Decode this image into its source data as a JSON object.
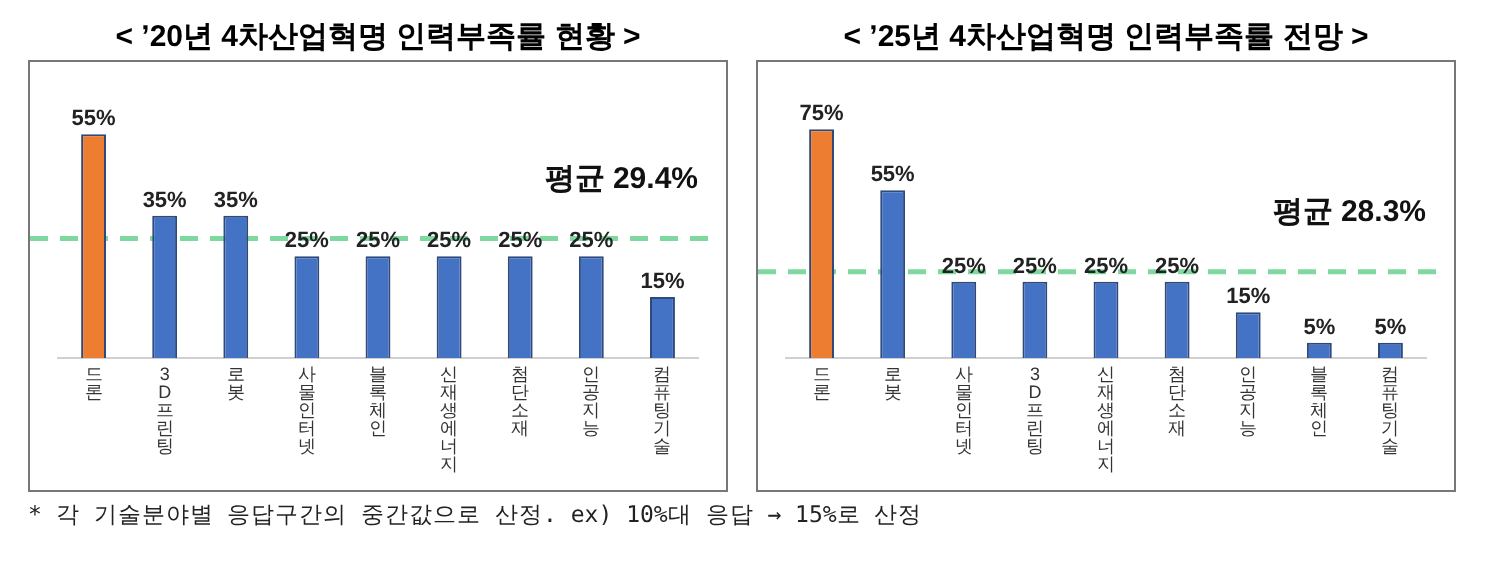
{
  "chart_data": [
    {
      "type": "bar",
      "title": "< ’20년 4차산업혁명 인력부족률 현황 >",
      "categories": [
        "드론",
        "3D프린팅",
        "로봇",
        "사물인터넷",
        "블록체인",
        "신재생에너지",
        "첨단소재",
        "인공지능",
        "컴퓨팅기술"
      ],
      "values": [
        55,
        35,
        35,
        25,
        25,
        25,
        25,
        25,
        15
      ],
      "value_labels": [
        "55%",
        "35%",
        "35%",
        "25%",
        "25%",
        "25%",
        "25%",
        "25%",
        "15%"
      ],
      "colors": [
        "#ed7d31",
        "#4472c4",
        "#4472c4",
        "#4472c4",
        "#4472c4",
        "#4472c4",
        "#4472c4",
        "#4472c4",
        "#4472c4"
      ],
      "ref_lines": [
        {
          "axis": "y",
          "value": 29.4,
          "label": "평균 29.4%",
          "color": "#7fd8a0",
          "line_style": "dashed"
        }
      ],
      "annotations": [
        "* 각 기술분야별 응답구간의 중간값으로 산정. ex) 10%대 응답 → 15%로 산정"
      ],
      "grid": false,
      "legend": false
    },
    {
      "type": "bar",
      "title": "< ’25년 4차산업혁명 인력부족률 전망 >",
      "categories": [
        "드론",
        "로봇",
        "사물인터넷",
        "3D프린팅",
        "신재생에너지",
        "첨단소재",
        "인공지능",
        "블록체인",
        "컴퓨팅기술"
      ],
      "values": [
        75,
        55,
        25,
        25,
        25,
        25,
        15,
        5,
        5
      ],
      "value_labels": [
        "75%",
        "55%",
        "25%",
        "25%",
        "25%",
        "25%",
        "15%",
        "5%",
        "5%"
      ],
      "colors": [
        "#ed7d31",
        "#4472c4",
        "#4472c4",
        "#4472c4",
        "#4472c4",
        "#4472c4",
        "#4472c4",
        "#4472c4",
        "#4472c4"
      ],
      "ref_lines": [
        {
          "axis": "y",
          "value": 28.3,
          "label": "평균 28.3%",
          "color": "#7fd8a0",
          "line_style": "dashed"
        }
      ],
      "grid": false,
      "legend": false
    }
  ]
}
